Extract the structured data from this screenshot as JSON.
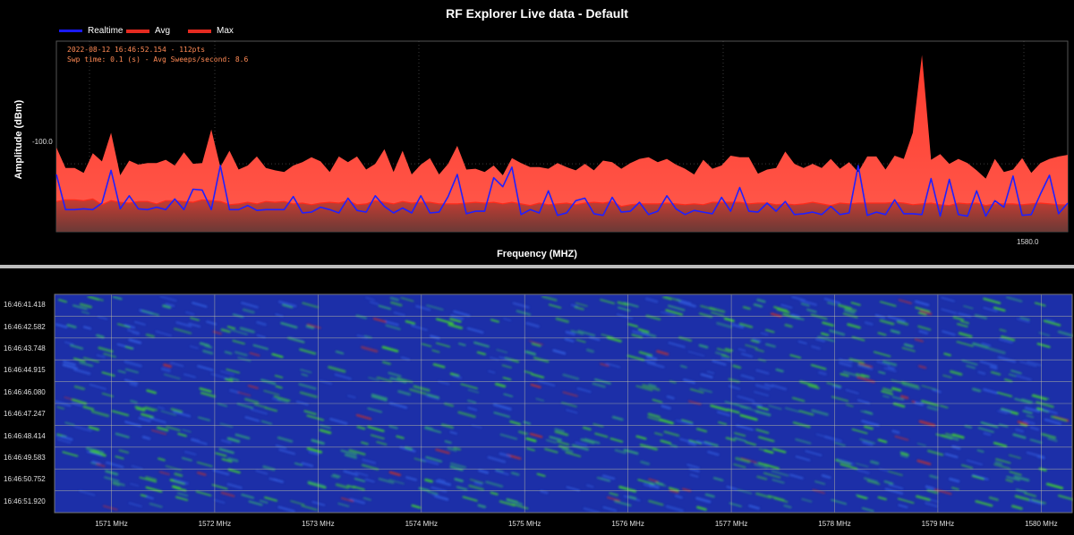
{
  "header": {
    "title": "RF Explorer Live data - Default"
  },
  "legend": [
    {
      "label": "Realtime",
      "color": "#1a1aff"
    },
    {
      "label": "Avg",
      "color": "#ff3b2f"
    },
    {
      "label": "Max",
      "color": "#ff3b2f"
    }
  ],
  "info": {
    "line1": "2022-08-12 16:46:52.154 - 112pts",
    "line2": "Swp time: 0.1 (s) - Avg Sweeps/second: 8.6"
  },
  "colors": {
    "max_fill": "#ff3b2f",
    "avg_fill": "#b83a30",
    "realtime": "#2020ff",
    "background": "#000000",
    "waterfall_bg": "#1c2fa8",
    "waterfall_hot": "#39c43a"
  },
  "chart_data": {
    "type": "area",
    "xlabel": "Frequency (MHZ)",
    "ylabel": "Amplitude (dBm)",
    "ytick_label": "-100.0",
    "xtick_label": "1580.0",
    "grid": true,
    "legend_position": "top-left",
    "series": [
      {
        "name": "Max",
        "values": [
          -98.0,
          -100.5,
          -100.5,
          -101.1,
          -98.7,
          -99.7,
          -96.2,
          -101.4,
          -99.6,
          -100.1,
          -99.9,
          -99.9,
          -99.5,
          -100.2,
          -98.6,
          -100.0,
          -99.9,
          -95.8,
          -100.4,
          -98.4,
          -100.7,
          -100.2,
          -99.1,
          -100.5,
          -100.8,
          -101.0,
          -100.2,
          -99.8,
          -99.2,
          -99.7,
          -101.0,
          -99.1,
          -99.8,
          -99.1,
          -100.7,
          -100.0,
          -98.2,
          -101.0,
          -98.4,
          -101.3,
          -100.1,
          -99.3,
          -101.3,
          -100.0,
          -97.8,
          -100.7,
          -100.6,
          -101.0,
          -100.2,
          -101.4,
          -99.3,
          -99.9,
          -100.4,
          -100.4,
          -100.6,
          -99.9,
          -100.4,
          -100.8,
          -100.0,
          -100.8,
          -99.6,
          -99.8,
          -100.6,
          -99.9,
          -99.4,
          -99.2,
          -99.8,
          -99.4,
          -100.1,
          -100.6,
          -101.3,
          -99.5,
          -100.6,
          -100.2,
          -99.0,
          -99.2,
          -99.2,
          -101.2,
          -100.7,
          -100.5,
          -98.5,
          -100.0,
          -100.5,
          -100.0,
          -100.5,
          -99.4,
          -100.6,
          -99.8,
          -101.0,
          -99.1,
          -99.1,
          -100.7,
          -99.0,
          -99.4,
          -96.2,
          -86.7,
          -99.5,
          -98.8,
          -100.0,
          -99.4,
          -99.9,
          -100.8,
          -101.8,
          -99.4,
          -101.0,
          -100.7,
          -99.3,
          -101.1,
          -99.9,
          -99.4,
          -99.1,
          -98.9
        ]
      },
      {
        "name": "Avg",
        "values": [
          -104.6,
          -104.4,
          -104.4,
          -104.5,
          -104.3,
          -105.0,
          -104.5,
          -104.7,
          -104.8,
          -104.6,
          -104.6,
          -104.9,
          -104.5,
          -104.5,
          -104.6,
          -104.7,
          -104.4,
          -104.5,
          -104.6,
          -105.0,
          -104.9,
          -104.7,
          -104.9,
          -104.6,
          -104.7,
          -104.6,
          -104.9,
          -104.8,
          -105.0,
          -104.8,
          -104.7,
          -104.8,
          -104.5,
          -105.0,
          -104.9,
          -104.5,
          -104.7,
          -104.9,
          -104.6,
          -104.8,
          -104.7,
          -104.7,
          -104.9,
          -104.9,
          -104.9,
          -104.8,
          -104.7,
          -104.8,
          -104.7,
          -104.9,
          -104.7,
          -104.9,
          -105.1,
          -104.8,
          -105.0,
          -104.9,
          -104.8,
          -105.0,
          -104.8,
          -104.7,
          -104.8,
          -104.6,
          -105.2,
          -105.0,
          -104.9,
          -104.9,
          -104.9,
          -104.8,
          -104.9,
          -105.0,
          -104.9,
          -105.0,
          -104.7,
          -104.7,
          -104.7,
          -104.7,
          -104.9,
          -104.8,
          -104.8,
          -105.0,
          -104.9,
          -105.0,
          -104.9,
          -104.7,
          -104.9,
          -105.1,
          -104.8,
          -104.9,
          -104.8,
          -104.8,
          -104.8,
          -104.8,
          -104.7,
          -104.8,
          -105.0,
          -104.9,
          -104.8,
          -105.0,
          -105.1,
          -104.8,
          -104.9,
          -104.8,
          -105.1,
          -104.9,
          -104.9,
          -104.9,
          -105.0,
          -104.9,
          -104.8,
          -104.9,
          -105.0,
          -105.0
        ]
      },
      {
        "name": "Realtime",
        "values": [
          -101.3,
          -105.6,
          -105.6,
          -105.5,
          -105.6,
          -104.8,
          -100.8,
          -105.5,
          -103.9,
          -105.5,
          -105.6,
          -105.3,
          -105.6,
          -104.3,
          -105.6,
          -103.1,
          -103.2,
          -105.6,
          -100.2,
          -105.6,
          -105.6,
          -105.1,
          -105.7,
          -105.6,
          -105.6,
          -105.6,
          -104.0,
          -106.0,
          -105.9,
          -105.3,
          -105.6,
          -106.0,
          -104.2,
          -105.7,
          -105.9,
          -103.9,
          -105.2,
          -106.0,
          -105.4,
          -106.0,
          -103.9,
          -106.0,
          -105.9,
          -104.0,
          -101.3,
          -106.1,
          -105.8,
          -105.8,
          -101.7,
          -102.8,
          -100.4,
          -106.2,
          -105.6,
          -106.0,
          -103.3,
          -106.3,
          -106.0,
          -104.5,
          -104.2,
          -106.1,
          -106.3,
          -104.1,
          -105.9,
          -105.8,
          -104.7,
          -106.2,
          -105.8,
          -103.9,
          -105.5,
          -106.2,
          -105.7,
          -105.9,
          -106.1,
          -104.1,
          -105.8,
          -102.9,
          -105.8,
          -105.9,
          -104.8,
          -105.8,
          -104.6,
          -106.2,
          -106.1,
          -105.9,
          -106.2,
          -105.2,
          -106.2,
          -106.0,
          -100.2,
          -106.3,
          -105.9,
          -106.2,
          -104.4,
          -106.1,
          -106.1,
          -106.2,
          -101.8,
          -106.4,
          -101.9,
          -106.2,
          -106.4,
          -103.3,
          -106.4,
          -104.5,
          -105.3,
          -101.5,
          -106.3,
          -106.2,
          -103.7,
          -101.4,
          -106.1,
          -104.8
        ]
      }
    ],
    "y_axis": {
      "ylim": [
        -108.3,
        -85.0
      ]
    }
  },
  "waterfall": {
    "time_labels": [
      "16:46:41.418",
      "16:46:42.582",
      "16:46:43.748",
      "16:46:44.915",
      "16:46:46.080",
      "16:46:47.247",
      "16:46:48.414",
      "16:46:49.583",
      "16:46:50.752",
      "16:46:51.920"
    ],
    "freq_labels": [
      "1571 MHz",
      "1572 MHz",
      "1573 MHz",
      "1574 MHz",
      "1575 MHz",
      "1576 MHz",
      "1577 MHz",
      "1578 MHz",
      "1579 MHz",
      "1580 MHz"
    ]
  }
}
